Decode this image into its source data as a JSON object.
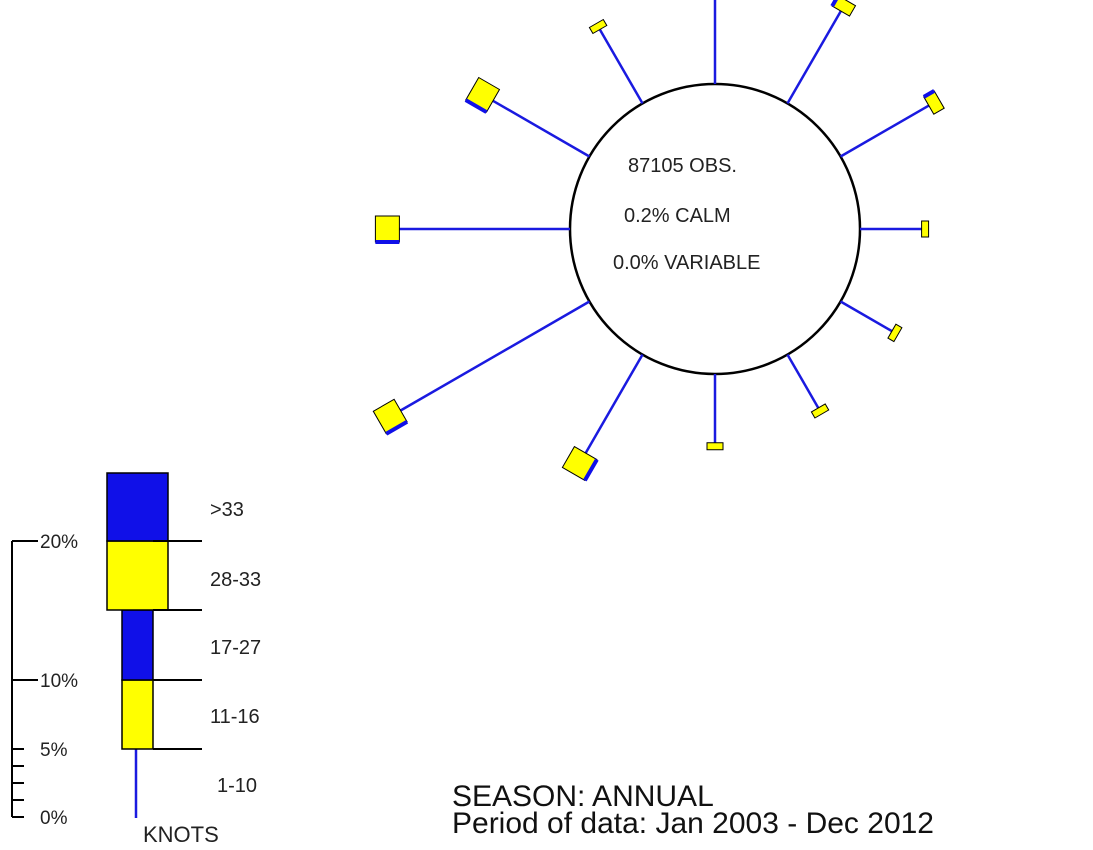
{
  "chart_data": {
    "type": "wind-rose",
    "center": {
      "observations": "87105 OBS.",
      "calm": "0.2% CALM",
      "variable": "0.0% VARIABLE"
    },
    "speed_bins": [
      {
        "label": "1-10",
        "color": "#1a1ae0"
      },
      {
        "label": "11-16",
        "color": "#ffff00"
      },
      {
        "label": "17-27",
        "color": "#1010e8"
      },
      {
        "label": "28-33",
        "color": "#ffff00"
      },
      {
        "label": ">33",
        "color": "#1010e8"
      }
    ],
    "units_label": "KNOTS",
    "scale_ticks": [
      {
        "value": 0,
        "label": "0%"
      },
      {
        "value": 5,
        "label": "5%"
      },
      {
        "value": 10,
        "label": "10%"
      },
      {
        "value": 20,
        "label": "20%"
      }
    ],
    "legend_scale_box_widths_pct": [
      5,
      10,
      15,
      20
    ],
    "directions": [
      {
        "dir_deg": 0,
        "percent": 4.1
      },
      {
        "dir_deg": 30,
        "percent": 4.5
      },
      {
        "dir_deg": 60,
        "percent": 4.3
      },
      {
        "dir_deg": 90,
        "percent": 2.6
      },
      {
        "dir_deg": 120,
        "percent": 2.5
      },
      {
        "dir_deg": 150,
        "percent": 2.6
      },
      {
        "dir_deg": 180,
        "percent": 2.9
      },
      {
        "dir_deg": 210,
        "percent": 4.8
      },
      {
        "dir_deg": 240,
        "percent": 9.2
      },
      {
        "dir_deg": 270,
        "percent": 7.2
      },
      {
        "dir_deg": 300,
        "percent": 4.7
      },
      {
        "dir_deg": 330,
        "percent": 3.6
      }
    ],
    "colors": {
      "stem": "#1a1ae0",
      "box_fill": "#ffff00",
      "box_shade": "#1010e8",
      "circle": "#000000"
    }
  },
  "footer": {
    "season": "SEASON: ANNUAL",
    "period": "Period of data: Jan 2003 - Dec 2012"
  }
}
